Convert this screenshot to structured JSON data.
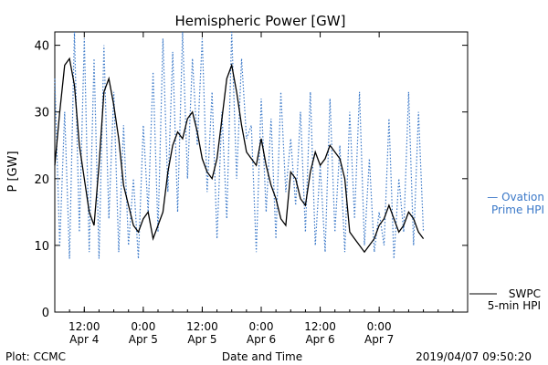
{
  "chart_data": {
    "type": "line",
    "title": "Hemispheric Power [GW]",
    "xlabel": "Date and Time",
    "ylabel": "P [GW]",
    "ylim": [
      0,
      42
    ],
    "yticks": [
      0,
      10,
      20,
      30,
      40
    ],
    "xlim": [
      "2019-04-04T06:00",
      "2019-04-07T18:00"
    ],
    "xticks": [
      {
        "t": "2019-04-04T12:00",
        "line1": "12:00",
        "line2": "Apr 4"
      },
      {
        "t": "2019-04-05T00:00",
        "line1": "0:00",
        "line2": "Apr 5"
      },
      {
        "t": "2019-04-05T12:00",
        "line1": "12:00",
        "line2": "Apr 5"
      },
      {
        "t": "2019-04-06T00:00",
        "line1": "0:00",
        "line2": "Apr 6"
      },
      {
        "t": "2019-04-06T12:00",
        "line1": "12:00",
        "line2": "Apr 6"
      },
      {
        "t": "2019-04-07T00:00",
        "line1": "0:00",
        "line2": "Apr 7"
      }
    ],
    "grid": false,
    "legend_position": "right",
    "series": [
      {
        "name": "Ovation Prime HPI",
        "legend_line1": "— Ovation",
        "legend_line2": "Prime HPI",
        "style": "dotted",
        "color": "#3a78c8",
        "x": [
          "2019-04-04T06:00",
          "2019-04-04T07:00",
          "2019-04-04T08:00",
          "2019-04-04T09:00",
          "2019-04-04T10:00",
          "2019-04-04T11:00",
          "2019-04-04T12:00",
          "2019-04-04T13:00",
          "2019-04-04T14:00",
          "2019-04-04T15:00",
          "2019-04-04T16:00",
          "2019-04-04T17:00",
          "2019-04-04T18:00",
          "2019-04-04T19:00",
          "2019-04-04T20:00",
          "2019-04-04T21:00",
          "2019-04-04T22:00",
          "2019-04-04T23:00",
          "2019-04-05T00:00",
          "2019-04-05T01:00",
          "2019-04-05T02:00",
          "2019-04-05T03:00",
          "2019-04-05T04:00",
          "2019-04-05T05:00",
          "2019-04-05T06:00",
          "2019-04-05T07:00",
          "2019-04-05T08:00",
          "2019-04-05T09:00",
          "2019-04-05T10:00",
          "2019-04-05T11:00",
          "2019-04-05T12:00",
          "2019-04-05T13:00",
          "2019-04-05T14:00",
          "2019-04-05T15:00",
          "2019-04-05T16:00",
          "2019-04-05T17:00",
          "2019-04-05T18:00",
          "2019-04-05T19:00",
          "2019-04-05T20:00",
          "2019-04-05T21:00",
          "2019-04-05T22:00",
          "2019-04-05T23:00",
          "2019-04-06T00:00",
          "2019-04-06T01:00",
          "2019-04-06T02:00",
          "2019-04-06T03:00",
          "2019-04-06T04:00",
          "2019-04-06T05:00",
          "2019-04-06T06:00",
          "2019-04-06T07:00",
          "2019-04-06T08:00",
          "2019-04-06T09:00",
          "2019-04-06T10:00",
          "2019-04-06T11:00",
          "2019-04-06T12:00",
          "2019-04-06T13:00",
          "2019-04-06T14:00",
          "2019-04-06T15:00",
          "2019-04-06T16:00",
          "2019-04-06T17:00",
          "2019-04-06T18:00",
          "2019-04-06T19:00",
          "2019-04-06T20:00",
          "2019-04-06T21:00",
          "2019-04-06T22:00",
          "2019-04-06T23:00",
          "2019-04-07T00:00",
          "2019-04-07T01:00",
          "2019-04-07T02:00",
          "2019-04-07T03:00",
          "2019-04-07T04:00",
          "2019-04-07T05:00",
          "2019-04-07T06:00",
          "2019-04-07T07:00",
          "2019-04-07T08:00",
          "2019-04-07T09:00"
        ],
        "values": [
          35,
          10,
          30,
          8,
          42,
          12,
          41,
          9,
          38,
          8,
          40,
          14,
          33,
          9,
          28,
          10,
          20,
          8,
          28,
          15,
          36,
          12,
          41,
          18,
          39,
          15,
          42,
          20,
          38,
          25,
          41,
          18,
          33,
          11,
          30,
          14,
          42,
          20,
          38,
          26,
          28,
          9,
          32,
          15,
          29,
          11,
          33,
          18,
          26,
          16,
          30,
          12,
          33,
          10,
          22,
          9,
          32,
          12,
          25,
          9,
          30,
          14,
          33,
          10,
          23,
          9,
          15,
          10,
          29,
          8,
          20,
          12,
          33,
          10,
          30,
          12
        ]
      },
      {
        "name": "SWPC 5-min HPI",
        "legend_line1": "SWPC",
        "legend_line2": "5-min HPI",
        "style": "solid",
        "color": "#000000",
        "x": [
          "2019-04-04T06:00",
          "2019-04-04T07:00",
          "2019-04-04T08:00",
          "2019-04-04T09:00",
          "2019-04-04T10:00",
          "2019-04-04T11:00",
          "2019-04-04T12:00",
          "2019-04-04T13:00",
          "2019-04-04T14:00",
          "2019-04-04T15:00",
          "2019-04-04T16:00",
          "2019-04-04T17:00",
          "2019-04-04T18:00",
          "2019-04-04T19:00",
          "2019-04-04T20:00",
          "2019-04-04T21:00",
          "2019-04-04T22:00",
          "2019-04-04T23:00",
          "2019-04-05T00:00",
          "2019-04-05T01:00",
          "2019-04-05T02:00",
          "2019-04-05T03:00",
          "2019-04-05T04:00",
          "2019-04-05T05:00",
          "2019-04-05T06:00",
          "2019-04-05T07:00",
          "2019-04-05T08:00",
          "2019-04-05T09:00",
          "2019-04-05T10:00",
          "2019-04-05T11:00",
          "2019-04-05T12:00",
          "2019-04-05T13:00",
          "2019-04-05T14:00",
          "2019-04-05T15:00",
          "2019-04-05T16:00",
          "2019-04-05T17:00",
          "2019-04-05T18:00",
          "2019-04-05T19:00",
          "2019-04-05T20:00",
          "2019-04-05T21:00",
          "2019-04-05T22:00",
          "2019-04-05T23:00",
          "2019-04-06T00:00",
          "2019-04-06T01:00",
          "2019-04-06T02:00",
          "2019-04-06T03:00",
          "2019-04-06T04:00",
          "2019-04-06T05:00",
          "2019-04-06T06:00",
          "2019-04-06T07:00",
          "2019-04-06T08:00",
          "2019-04-06T09:00",
          "2019-04-06T10:00",
          "2019-04-06T11:00",
          "2019-04-06T12:00",
          "2019-04-06T13:00",
          "2019-04-06T14:00",
          "2019-04-06T15:00",
          "2019-04-06T16:00",
          "2019-04-06T17:00",
          "2019-04-06T18:00",
          "2019-04-06T19:00",
          "2019-04-06T20:00",
          "2019-04-06T21:00",
          "2019-04-06T22:00",
          "2019-04-06T23:00",
          "2019-04-07T00:00",
          "2019-04-07T01:00",
          "2019-04-07T02:00",
          "2019-04-07T03:00",
          "2019-04-07T04:00",
          "2019-04-07T05:00",
          "2019-04-07T06:00",
          "2019-04-07T07:00",
          "2019-04-07T08:00",
          "2019-04-07T09:00"
        ],
        "values": [
          22,
          30,
          37,
          38,
          34,
          25,
          20,
          15,
          13,
          22,
          33,
          35,
          31,
          26,
          19,
          16,
          13,
          12,
          14,
          15,
          11,
          13,
          15,
          21,
          25,
          27,
          26,
          29,
          30,
          27,
          23,
          21,
          20,
          23,
          29,
          35,
          37,
          33,
          28,
          24,
          23,
          22,
          26,
          22,
          19,
          17,
          14,
          13,
          21,
          20,
          17,
          16,
          21,
          24,
          22,
          23,
          25,
          24,
          23,
          20,
          12,
          11,
          10,
          9,
          10,
          11,
          13,
          14,
          16,
          14,
          12,
          13,
          15,
          14,
          12,
          11
        ]
      }
    ],
    "annotations": {
      "plot_credit": "Plot: CCMC",
      "timestamp": "2019/04/07 09:50:20"
    }
  }
}
